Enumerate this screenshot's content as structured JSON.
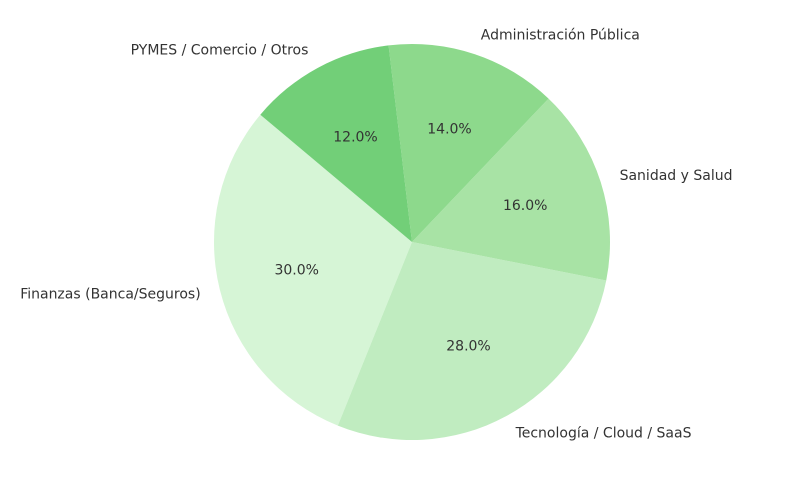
{
  "chart_data": {
    "type": "pie",
    "title": "",
    "start_angle_deg": 140,
    "direction": "counterclockwise",
    "slices": [
      {
        "label": "Finanzas (Banca/Seguros)",
        "value": 30.0,
        "pct_label": "30.0%",
        "color": "#d6f5d6"
      },
      {
        "label": "Tecnología / Cloud / SaaS",
        "value": 28.0,
        "pct_label": "28.0%",
        "color": "#c0ecc0"
      },
      {
        "label": "Sanidad y Salud",
        "value": 16.0,
        "pct_label": "16.0%",
        "color": "#a8e3a5"
      },
      {
        "label": "Administración Pública",
        "value": 14.0,
        "pct_label": "14.0%",
        "color": "#8dd98c"
      },
      {
        "label": "PYMES / Comercio / Otros",
        "value": 12.0,
        "pct_label": "12.0%",
        "color": "#72cf78"
      }
    ]
  }
}
